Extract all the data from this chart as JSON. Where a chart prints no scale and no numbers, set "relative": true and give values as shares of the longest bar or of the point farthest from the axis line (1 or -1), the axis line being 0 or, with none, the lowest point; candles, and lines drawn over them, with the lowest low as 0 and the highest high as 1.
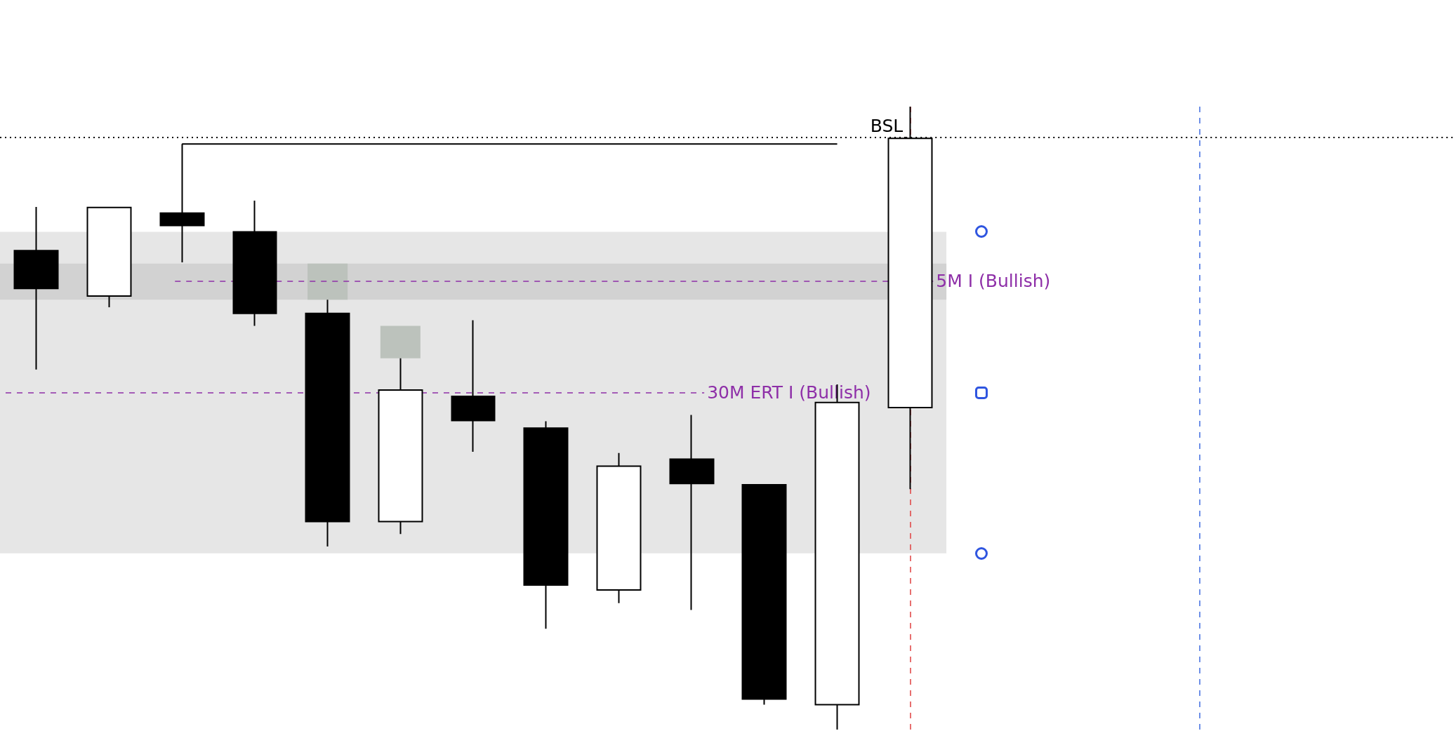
{
  "chart_data": {
    "type": "candlestick",
    "relative": true,
    "categories": [
      null,
      null,
      null,
      null,
      null,
      null,
      null,
      null,
      null,
      null,
      null,
      null,
      null
    ],
    "ohlc": [
      [
        0.769,
        0.839,
        0.578,
        0.708
      ],
      [
        0.696,
        0.838,
        0.678,
        0.838
      ],
      [
        0.829,
        0.94,
        0.75,
        0.809
      ],
      [
        0.799,
        0.849,
        0.648,
        0.668
      ],
      [
        0.668,
        0.69,
        0.294,
        0.334
      ],
      [
        0.334,
        0.596,
        0.314,
        0.545
      ],
      [
        0.535,
        0.657,
        0.446,
        0.496
      ],
      [
        0.484,
        0.495,
        0.162,
        0.232
      ],
      [
        0.224,
        0.444,
        0.203,
        0.423
      ],
      [
        0.434,
        0.505,
        0.192,
        0.395
      ],
      [
        0.393,
        0.393,
        0.04,
        0.049
      ],
      [
        0.04,
        0.554,
        0.0,
        0.525
      ],
      [
        0.517,
        1.0,
        0.386,
        0.949
      ]
    ],
    "series": [
      {
        "type": "bar",
        "color": "#bcc2bc",
        "base": [
          null,
          null,
          null,
          null,
          0.69,
          0.596,
          null,
          null,
          null,
          null,
          null,
          null,
          null
        ],
        "values": [
          null,
          null,
          null,
          null,
          0.058,
          0.052,
          null,
          null,
          null,
          null,
          null,
          null,
          null
        ]
      },
      {
        "type": "line",
        "color": "#000000",
        "values": [
          null,
          null,
          0.94,
          0.94,
          0.94,
          0.94,
          0.94,
          0.94,
          0.94,
          0.94,
          0.94,
          0.94,
          null
        ]
      }
    ],
    "ref_lines": [
      {
        "axis": "y",
        "value": 0.951,
        "label": "BSL",
        "color": "#000000",
        "line_style": "dotted"
      },
      {
        "axis": "y",
        "value": 0.72,
        "label": "5M I (Bullish)",
        "color": "#8e2fa8",
        "line_style": "dashed"
      },
      {
        "axis": "y",
        "value": 0.541,
        "label": "30M ERT I (Bullish)",
        "color": "#8e2fa8",
        "line_style": "dashed"
      }
    ],
    "bands": [
      {
        "axis": "y",
        "from": 0.283,
        "to": 0.799,
        "color": "#e6e6e6"
      },
      {
        "axis": "y",
        "from": 0.69,
        "to": 0.748,
        "color": "#d2d2d2"
      }
    ]
  }
}
